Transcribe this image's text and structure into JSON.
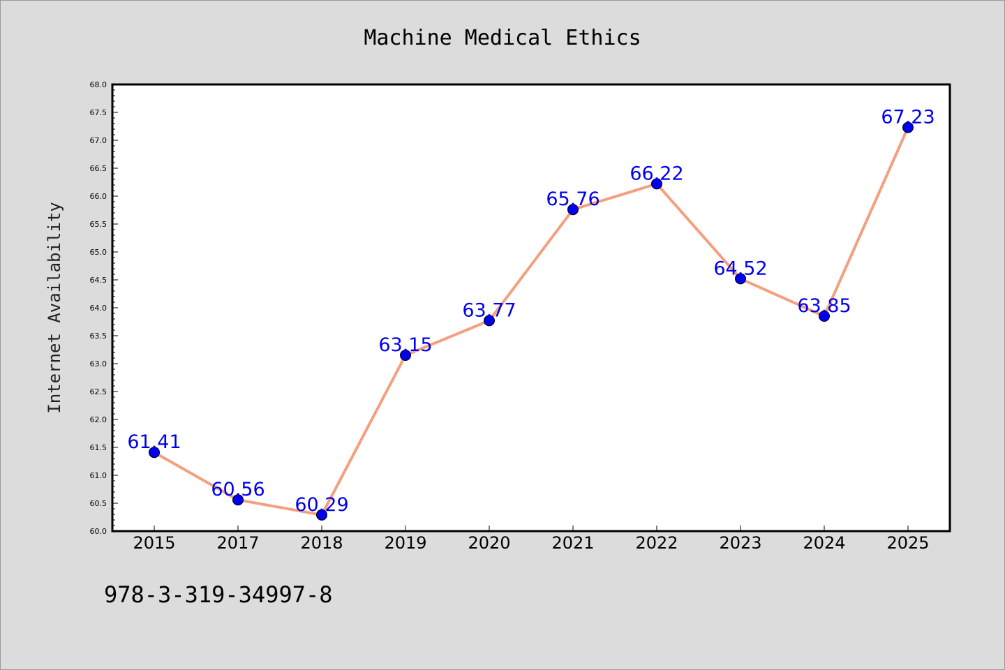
{
  "chart_data": {
    "type": "line",
    "title": "Machine Medical Ethics",
    "xlabel": "",
    "ylabel": "Internet Availability",
    "categories": [
      "2015",
      "2017",
      "2018",
      "2019",
      "2020",
      "2021",
      "2022",
      "2023",
      "2024",
      "2025"
    ],
    "series": [
      {
        "values": [
          61.41,
          60.56,
          60.29,
          63.15,
          63.77,
          65.76,
          66.22,
          64.52,
          63.85,
          67.23
        ],
        "line_color": "#f4a07f",
        "marker_color": "#0000ee",
        "label_color": "#0000ee"
      }
    ],
    "data_labels": [
      "61.41",
      "60.56",
      "60.29",
      "63.15",
      "63.77",
      "65.76",
      "66.22",
      "64.52",
      "63.85",
      "67.23"
    ],
    "ylim": [
      60.0,
      68.0
    ],
    "yticks": [
      "60.0",
      "60.5",
      "61.0",
      "61.5",
      "62.0",
      "62.5",
      "63.0",
      "63.5",
      "64.0",
      "64.5",
      "65.0",
      "65.5",
      "66.0",
      "66.5",
      "67.0",
      "67.5",
      "68.0"
    ],
    "grid": false,
    "legend": "none"
  },
  "footer": {
    "code": "978-3-319-34997-8"
  },
  "colors": {
    "background": "#dcdcdc",
    "plot_area": "#ffffff"
  }
}
